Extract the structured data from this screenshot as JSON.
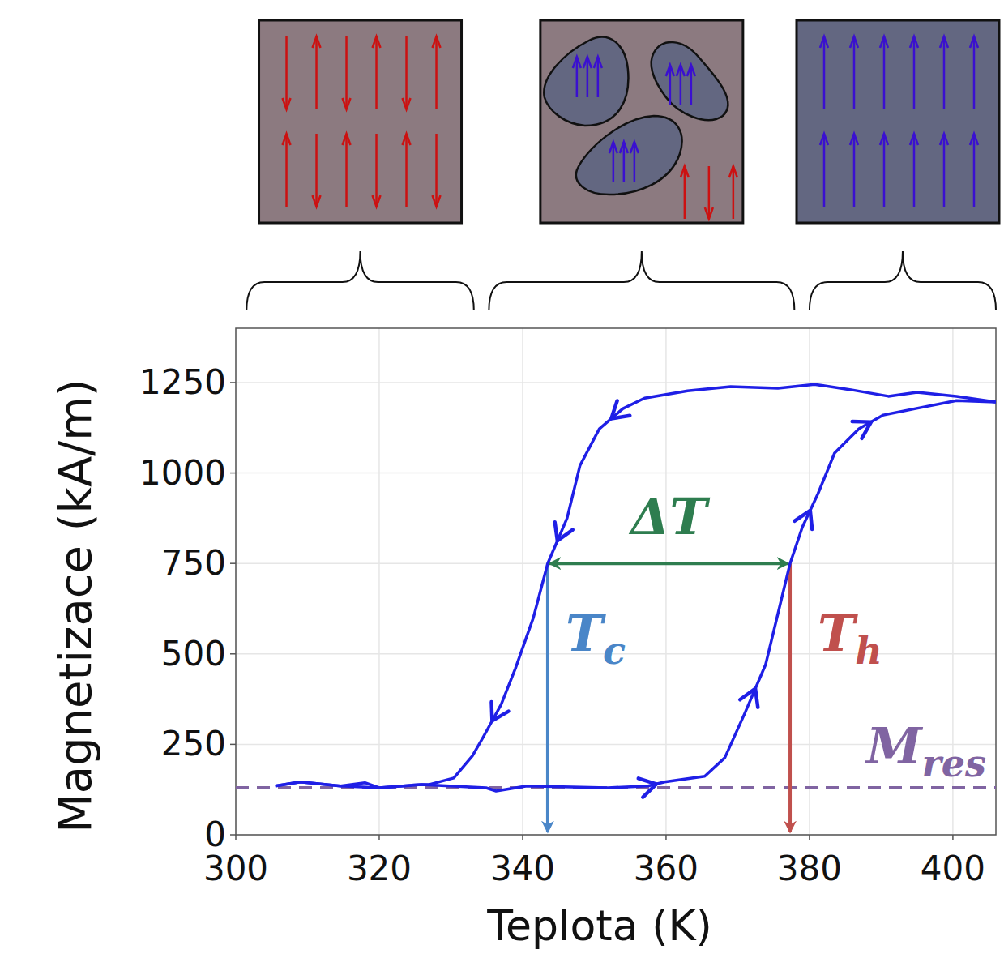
{
  "chart_data": {
    "type": "line",
    "x_label": "Teplota (K)",
    "y_label": "Magnetizace (kA/m)",
    "xlim": [
      300,
      406
    ],
    "ylim": [
      0,
      1400
    ],
    "xticks": [
      300,
      320,
      340,
      360,
      380,
      400
    ],
    "yticks": [
      0,
      250,
      500,
      750,
      1000,
      1250
    ],
    "grid": true,
    "series": [
      {
        "color": "#1f1fe6",
        "x": [
          406,
          400.5,
          395,
          391,
          385.8,
          380.7,
          375.6,
          369,
          363,
          357,
          354,
          350.7,
          348,
          346.2,
          343.5,
          341.5,
          339,
          337,
          334.5,
          333,
          330.4,
          327,
          325.9,
          320,
          314.6,
          309,
          305.5
        ],
        "values": [
          1196,
          1212,
          1223,
          1212,
          1230,
          1245,
          1234,
          1239,
          1227,
          1207,
          1178,
          1122,
          1021,
          875,
          750,
          600,
          460,
          360,
          270,
          218,
          157,
          139,
          139,
          130,
          135,
          146,
          135
        ]
      },
      {
        "color": "#1f1fe6",
        "x": [
          305.5,
          309,
          314.6,
          318,
          320,
          325.9,
          334.9,
          336.3,
          340.6,
          351.9,
          357.5,
          359.8,
          365.4,
          368.2,
          371,
          373.9,
          377.3,
          379,
          381.2,
          383.5,
          386.9,
          390.3,
          394.8,
          400.5,
          406
        ],
        "values": [
          135,
          146,
          135,
          144,
          130,
          139,
          130,
          121,
          135,
          130,
          135,
          146,
          162,
          213,
          337,
          471,
          750,
          850,
          943,
          1055,
          1122,
          1160,
          1178,
          1200,
          1196
        ]
      }
    ],
    "annotations": {
      "delta_t": {
        "text": "ΔT",
        "y": 750,
        "x_start": 343.5,
        "x_end": 377.3,
        "color": "#2e7d4f"
      },
      "t_c": {
        "text": "T",
        "sub": "c",
        "x": 343.5,
        "y": 750,
        "color": "#4a86c8"
      },
      "t_h": {
        "text": "T",
        "sub": "h",
        "x": 377.3,
        "y": 750,
        "color": "#c0504d"
      },
      "m_res": {
        "text": "M",
        "sub": "res",
        "y": 130,
        "color": "#8064a2"
      }
    },
    "regions": [
      {
        "x_start": 301.5,
        "x_end": 333.2
      },
      {
        "x_start": 335.3,
        "x_end": 377.9
      },
      {
        "x_start": 380,
        "x_end": 406
      }
    ]
  }
}
